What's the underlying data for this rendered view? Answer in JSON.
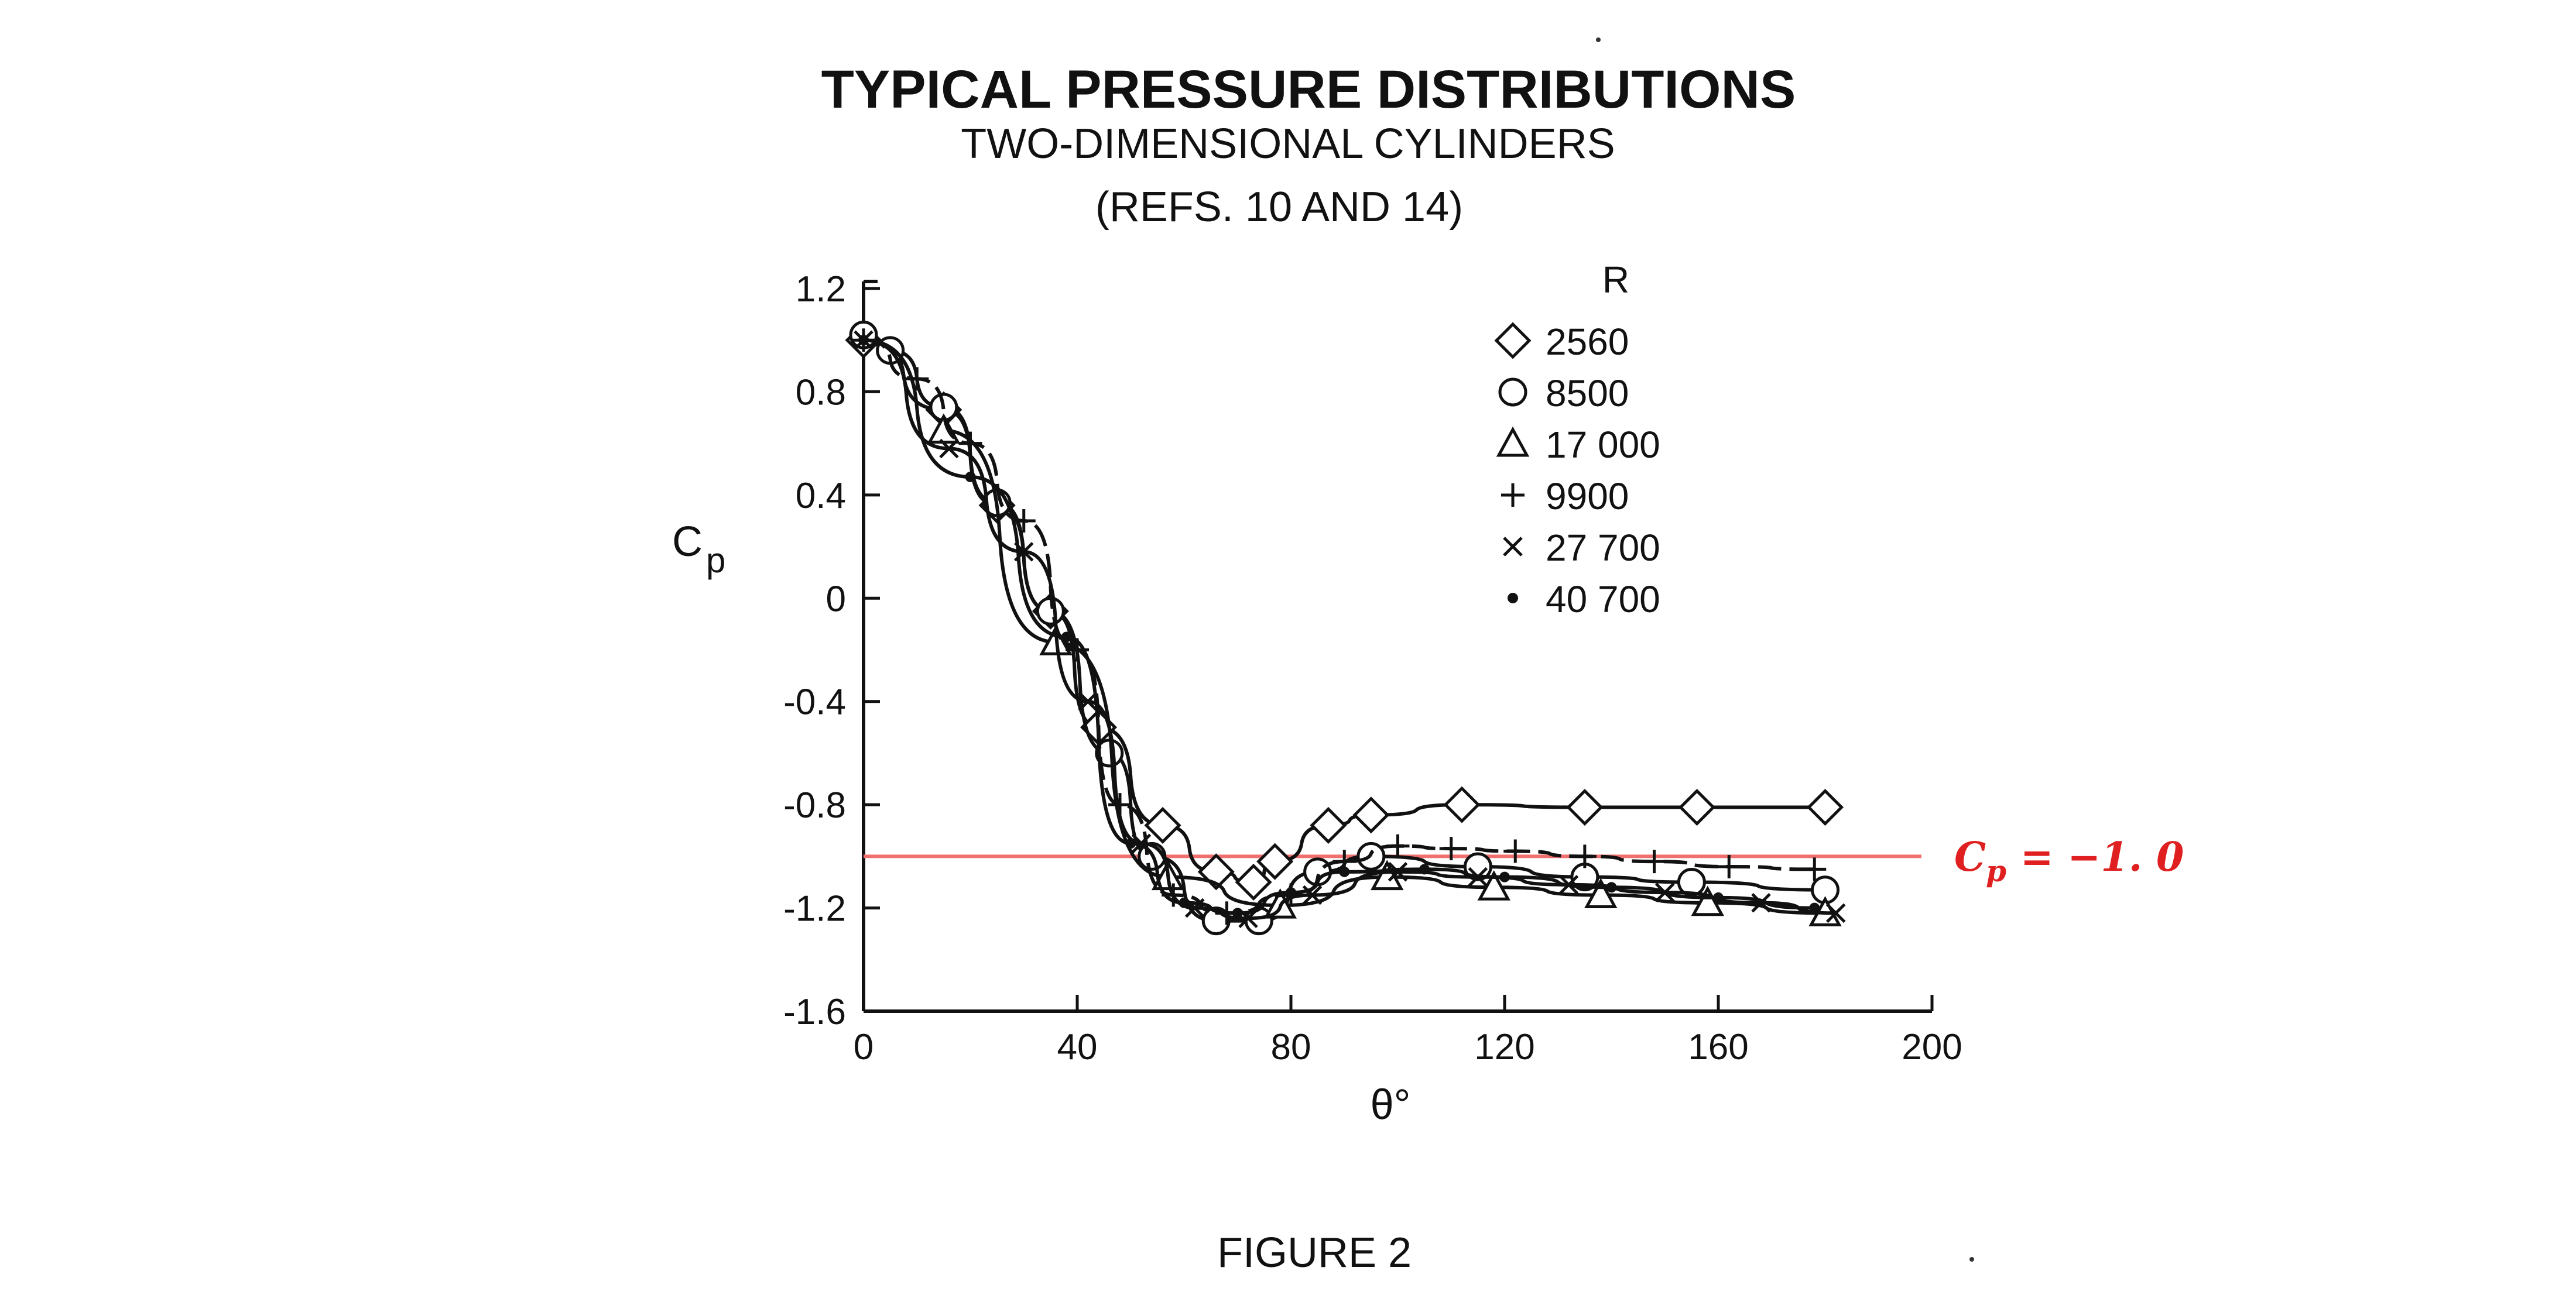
{
  "figure": {
    "title": "TYPICAL PRESSURE DISTRIBUTIONS",
    "subtitle": "TWO-DIMENSIONAL CYLINDERS",
    "refs": "(REFS. 10 AND 14)",
    "caption": "FIGURE 2"
  },
  "chart_data": {
    "type": "line",
    "title": "TYPICAL PRESSURE DISTRIBUTIONS",
    "xlabel": "θ°",
    "ylabel": "Cp",
    "xlim": [
      0,
      200
    ],
    "ylim": [
      -1.6,
      1.2
    ],
    "xticks": [
      0,
      40,
      80,
      120,
      160,
      200
    ],
    "yticks": [
      1.2,
      0.8,
      0.4,
      0,
      -0.4,
      -0.8,
      -1.2,
      -1.6
    ],
    "ytick_labels": [
      "1.2",
      "0.8",
      "0.4",
      "0",
      "-0.4",
      "-0.8",
      "-1.2",
      "-1.6"
    ],
    "xtick_labels": [
      "0",
      "40",
      "80",
      "120",
      "160",
      "200"
    ],
    "grid": false,
    "legend": {
      "title": "R",
      "position": "top-right"
    },
    "reference_line": {
      "y": -1.0,
      "label": "Cp = −1.0",
      "color": "#e02020"
    },
    "series": [
      {
        "name": "2560",
        "marker": "diamond",
        "line": "solid",
        "x": [
          0,
          15,
          25,
          35,
          44,
          56,
          66,
          73,
          77,
          87,
          95,
          112,
          135,
          156,
          180
        ],
        "y": [
          1.0,
          0.73,
          0.36,
          -0.05,
          -0.5,
          -0.88,
          -1.06,
          -1.1,
          -1.02,
          -0.88,
          -0.84,
          -0.8,
          -0.81,
          -0.81,
          -0.81
        ]
      },
      {
        "name": "8500",
        "marker": "circle",
        "line": "solid",
        "x": [
          0,
          5,
          15,
          25,
          35,
          46,
          54,
          66,
          74,
          85,
          95,
          115,
          135,
          155,
          180
        ],
        "y": [
          1.02,
          0.96,
          0.74,
          0.37,
          -0.05,
          -0.6,
          -1.0,
          -1.25,
          -1.25,
          -1.06,
          -1.0,
          -1.04,
          -1.08,
          -1.1,
          -1.13
        ]
      },
      {
        "name": "17 000",
        "marker": "triangle",
        "line": "solid",
        "x": [
          15,
          36,
          57,
          78,
          98,
          118,
          138,
          158,
          180
        ],
        "y": [
          0.65,
          -0.17,
          -1.08,
          -1.19,
          -1.08,
          -1.12,
          -1.15,
          -1.18,
          -1.22
        ]
      },
      {
        "name": "9900",
        "marker": "plus",
        "line": "dashed",
        "x": [
          0,
          10,
          20,
          30,
          40,
          48,
          58,
          68,
          80,
          90,
          100,
          110,
          122,
          135,
          148,
          162,
          178
        ],
        "y": [
          1.0,
          0.85,
          0.6,
          0.3,
          -0.2,
          -0.8,
          -1.15,
          -1.22,
          -1.15,
          -1.02,
          -0.96,
          -0.97,
          -0.98,
          -1.0,
          -1.02,
          -1.04,
          -1.05
        ]
      },
      {
        "name": "27 700",
        "marker": "cross",
        "line": "solid",
        "x": [
          0,
          16,
          30,
          42,
          52,
          62,
          72,
          84,
          100,
          115,
          132,
          150,
          168,
          182
        ],
        "y": [
          1.0,
          0.58,
          0.18,
          -0.4,
          -0.95,
          -1.2,
          -1.24,
          -1.15,
          -1.06,
          -1.08,
          -1.11,
          -1.14,
          -1.18,
          -1.22
        ]
      },
      {
        "name": "40 700",
        "marker": "dot",
        "line": "solid",
        "x": [
          0,
          20,
          38,
          50,
          60,
          70,
          80,
          90,
          105,
          120,
          140,
          160,
          178
        ],
        "y": [
          1.0,
          0.47,
          -0.15,
          -0.95,
          -1.18,
          -1.22,
          -1.14,
          -1.06,
          -1.05,
          -1.08,
          -1.12,
          -1.16,
          -1.2
        ]
      }
    ]
  }
}
